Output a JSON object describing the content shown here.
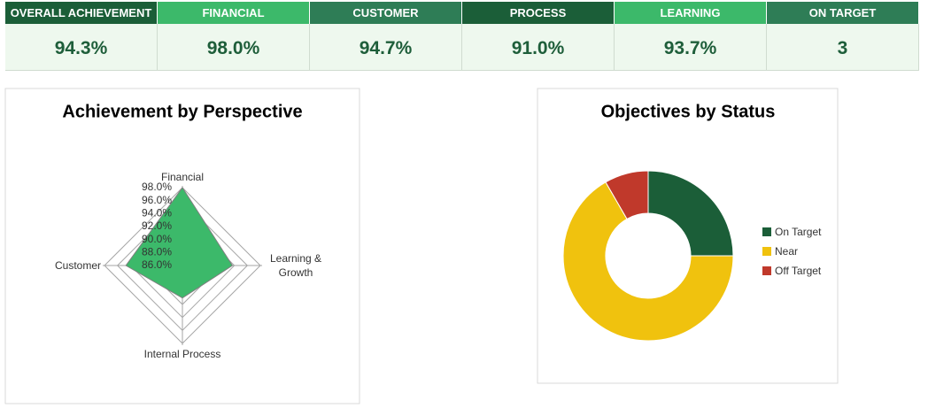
{
  "kpis": [
    {
      "label": "OVERALL ACHIEVEMENT",
      "value": "94.3%",
      "color": "#1b5e38"
    },
    {
      "label": "FINANCIAL",
      "value": "98.0%",
      "color": "#3cb96a"
    },
    {
      "label": "CUSTOMER",
      "value": "94.7%",
      "color": "#2e7d56"
    },
    {
      "label": "PROCESS",
      "value": "91.0%",
      "color": "#1b5e38"
    },
    {
      "label": "LEARNING",
      "value": "93.7%",
      "color": "#3cb96a"
    },
    {
      "label": "ON TARGET",
      "value": "3",
      "color": "#2e7d56"
    }
  ],
  "chart_data": [
    {
      "type": "radar",
      "title": "Achievement by Perspective",
      "categories": [
        "Financial",
        "Learning & Growth",
        "Internal Process",
        "Customer"
      ],
      "values": [
        98.0,
        93.7,
        91.0,
        94.7
      ],
      "color": "#3cb96a",
      "rlim": [
        86,
        98
      ],
      "rticks": [
        {
          "value": 98,
          "label": "98.0%"
        },
        {
          "value": 96,
          "label": "96.0%"
        },
        {
          "value": 94,
          "label": "94.0%"
        },
        {
          "value": 92,
          "label": "92.0%"
        },
        {
          "value": 90,
          "label": "90.0%"
        },
        {
          "value": 88,
          "label": "88.0%"
        },
        {
          "value": 86,
          "label": "86.0%"
        }
      ]
    },
    {
      "type": "donut",
      "title": "Objectives by Status",
      "categories": [
        "On Target",
        "Near",
        "Off Target"
      ],
      "values": [
        3,
        8,
        1
      ],
      "colors": [
        "#1b5e38",
        "#f0c20e",
        "#c0392b"
      ],
      "legend": "right"
    }
  ]
}
